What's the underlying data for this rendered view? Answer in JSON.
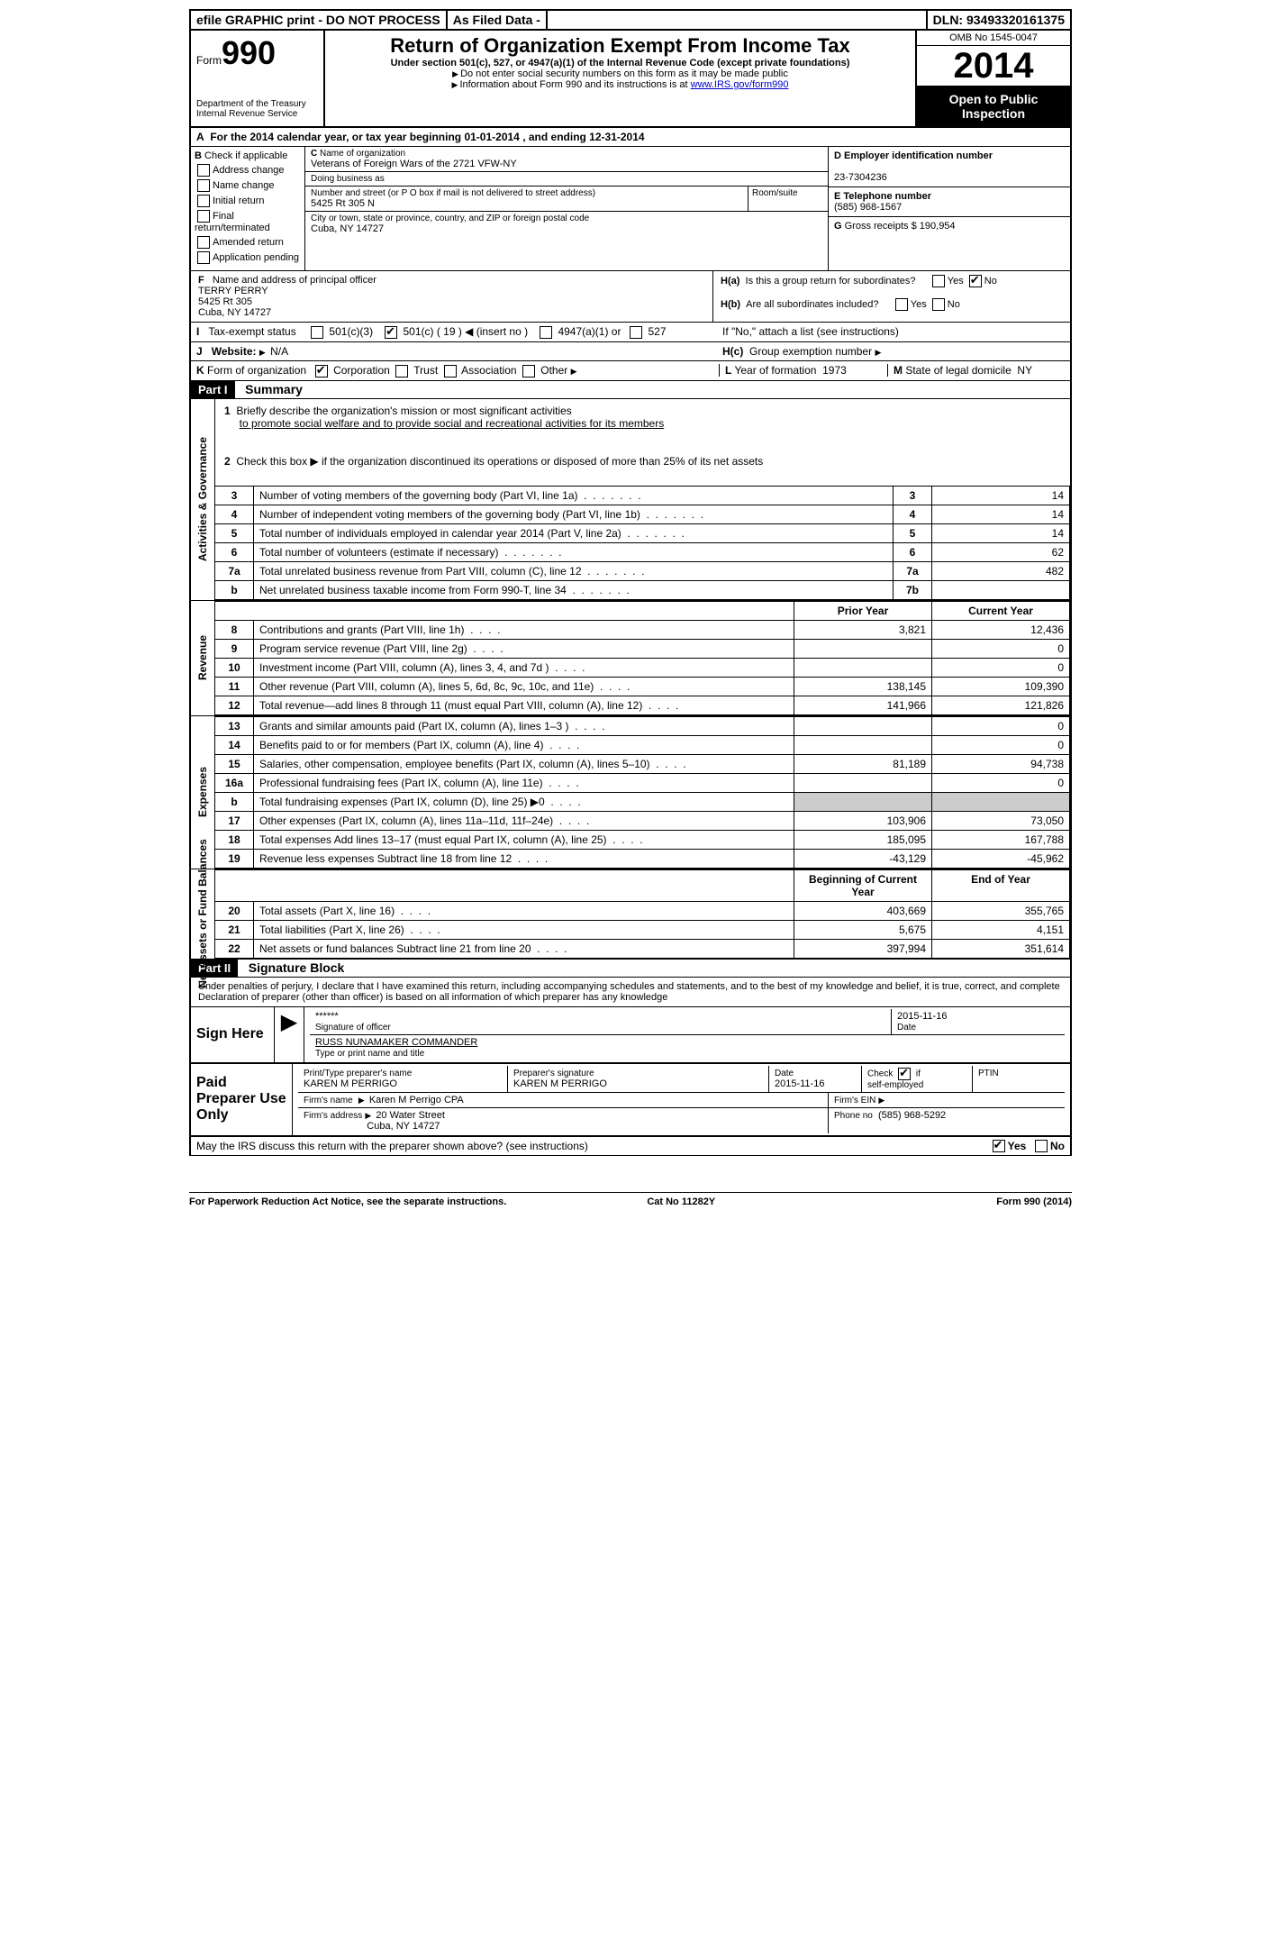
{
  "topbar": {
    "efile": "efile GRAPHIC print - DO NOT PROCESS",
    "asfiled": "As Filed Data -",
    "dln_label": "DLN:",
    "dln": "93493320161375"
  },
  "header": {
    "form_word": "Form",
    "form_no": "990",
    "dept": "Department of the Treasury",
    "irs": "Internal Revenue Service",
    "title": "Return of Organization Exempt From Income Tax",
    "subtitle": "Under section 501(c), 527, or 4947(a)(1) of the Internal Revenue Code (except private foundations)",
    "note1": "Do not enter social security numbers on this form as it may be made public",
    "note2": "Information about Form 990 and its instructions is at ",
    "note2_link": "www.IRS.gov/form990",
    "omb": "OMB No 1545-0047",
    "year": "2014",
    "open": "Open to Public Inspection"
  },
  "A": {
    "text_a": "For the 2014 calendar year, or tax year beginning 01-01-2014",
    "text_b": ", and ending 12-31-2014"
  },
  "B": {
    "label": "Check if applicable",
    "items": [
      "Address change",
      "Name change",
      "Initial return",
      "Final return/terminated",
      "Amended return",
      "Application pending"
    ]
  },
  "C": {
    "name_lab": "Name of organization",
    "name": "Veterans of Foreign Wars of the 2721 VFW-NY",
    "dba_lab": "Doing business as",
    "dba": "",
    "street_lab": "Number and street (or P O  box if mail is not delivered to street address)",
    "street": "5425 Rt 305 N",
    "room_lab": "Room/suite",
    "city_lab": "City or town, state or province, country, and ZIP or foreign postal code",
    "city": "Cuba, NY  14727"
  },
  "D": {
    "lab": "Employer identification number",
    "val": "23-7304236"
  },
  "E": {
    "lab": "Telephone number",
    "val": "(585) 968-1567"
  },
  "G": {
    "lab": "Gross receipts $",
    "val": "190,954"
  },
  "F": {
    "lab": "Name and address of principal officer",
    "name": "TERRY PERRY",
    "addr1": "5425 Rt 305",
    "addr2": "Cuba, NY  14727"
  },
  "H": {
    "a": "Is this a group return for subordinates?",
    "b": "Are all subordinates included?",
    "note": "If \"No,\" attach a list  (see instructions)",
    "c": "Group exemption number",
    "yes": "Yes",
    "no": "No"
  },
  "I": {
    "lab": "Tax-exempt status",
    "opts": [
      "501(c)(3)",
      "501(c) ( 19 ) ◀ (insert no )",
      "4947(a)(1) or",
      "527"
    ]
  },
  "J": {
    "lab": "Website:",
    "val": "N/A"
  },
  "K": {
    "lab": "Form of organization",
    "opts": [
      "Corporation",
      "Trust",
      "Association",
      "Other"
    ]
  },
  "L": {
    "lab": "Year of formation",
    "val": "1973"
  },
  "M": {
    "lab": "State of legal domicile",
    "val": "NY"
  },
  "part1": {
    "lab": "Part I",
    "title": "Summary"
  },
  "mission": {
    "q1": "Briefly describe the organization's mission or most significant activities",
    "ans": "to promote social welfare and to provide social and recreational activities for its members",
    "q2": "Check this box ▶  if the organization discontinued its operations or disposed of more than 25% of its net assets"
  },
  "gov_rows": [
    {
      "n": "3",
      "t": "Number of voting members of the governing body (Part VI, line 1a)",
      "k": "3",
      "v": "14"
    },
    {
      "n": "4",
      "t": "Number of independent voting members of the governing body (Part VI, line 1b)",
      "k": "4",
      "v": "14"
    },
    {
      "n": "5",
      "t": "Total number of individuals employed in calendar year 2014 (Part V, line 2a)",
      "k": "5",
      "v": "14"
    },
    {
      "n": "6",
      "t": "Total number of volunteers (estimate if necessary)",
      "k": "6",
      "v": "62"
    },
    {
      "n": "7a",
      "t": "Total unrelated business revenue from Part VIII, column (C), line 12",
      "k": "7a",
      "v": "482"
    },
    {
      "n": "b",
      "t": "Net unrelated business taxable income from Form 990-T, line 34",
      "k": "7b",
      "v": ""
    }
  ],
  "py_cy_header": {
    "py": "Prior Year",
    "cy": "Current Year"
  },
  "rev_rows": [
    {
      "n": "8",
      "t": "Contributions and grants (Part VIII, line 1h)",
      "py": "3,821",
      "cy": "12,436"
    },
    {
      "n": "9",
      "t": "Program service revenue (Part VIII, line 2g)",
      "py": "",
      "cy": "0"
    },
    {
      "n": "10",
      "t": "Investment income (Part VIII, column (A), lines 3, 4, and 7d )",
      "py": "",
      "cy": "0"
    },
    {
      "n": "11",
      "t": "Other revenue (Part VIII, column (A), lines 5, 6d, 8c, 9c, 10c, and 11e)",
      "py": "138,145",
      "cy": "109,390"
    },
    {
      "n": "12",
      "t": "Total revenue—add lines 8 through 11 (must equal Part VIII, column (A), line 12)",
      "py": "141,966",
      "cy": "121,826"
    }
  ],
  "exp_rows": [
    {
      "n": "13",
      "t": "Grants and similar amounts paid (Part IX, column (A), lines 1–3 )",
      "py": "",
      "cy": "0"
    },
    {
      "n": "14",
      "t": "Benefits paid to or for members (Part IX, column (A), line 4)",
      "py": "",
      "cy": "0"
    },
    {
      "n": "15",
      "t": "Salaries, other compensation, employee benefits (Part IX, column (A), lines 5–10)",
      "py": "81,189",
      "cy": "94,738"
    },
    {
      "n": "16a",
      "t": "Professional fundraising fees (Part IX, column (A), line 11e)",
      "py": "",
      "cy": "0"
    },
    {
      "n": "b",
      "t": "Total fundraising expenses (Part IX, column (D), line 25) ▶0",
      "py": "—shade—",
      "cy": "—shade—"
    },
    {
      "n": "17",
      "t": "Other expenses (Part IX, column (A), lines 11a–11d, 11f–24e)",
      "py": "103,906",
      "cy": "73,050"
    },
    {
      "n": "18",
      "t": "Total expenses  Add lines 13–17 (must equal Part IX, column (A), line 25)",
      "py": "185,095",
      "cy": "167,788"
    },
    {
      "n": "19",
      "t": "Revenue less expenses  Subtract line 18 from line 12",
      "py": "-43,129",
      "cy": "-45,962"
    }
  ],
  "na_header": {
    "py": "Beginning of Current Year",
    "cy": "End of Year"
  },
  "na_rows": [
    {
      "n": "20",
      "t": "Total assets (Part X, line 16)",
      "py": "403,669",
      "cy": "355,765"
    },
    {
      "n": "21",
      "t": "Total liabilities (Part X, line 26)",
      "py": "5,675",
      "cy": "4,151"
    },
    {
      "n": "22",
      "t": "Net assets or fund balances  Subtract line 21 from line 20",
      "py": "397,994",
      "cy": "351,614"
    }
  ],
  "part2": {
    "lab": "Part II",
    "title": "Signature Block"
  },
  "perjury": "Under penalties of perjury, I declare that I have examined this return, including accompanying schedules and statements, and to the best of my knowledge and belief, it is true, correct, and complete  Declaration of preparer (other than officer) is based on all information of which preparer has any knowledge",
  "sign": {
    "lab": "Sign Here",
    "stars": "******",
    "sig_of": "Signature of officer",
    "date": "2015-11-16",
    "date_lab": "Date",
    "typed": "RUSS NUNAMAKER COMMANDER",
    "typed_lab": "Type or print name and title"
  },
  "paid": {
    "lab": "Paid Preparer Use Only",
    "ptname_lab": "Print/Type preparer's name",
    "ptname": "KAREN M PERRIGO",
    "psig_lab": "Preparer's signature",
    "psig": "KAREN M PERRIGO",
    "pdate_lab": "Date",
    "pdate": "2015-11-16",
    "self_lab": "Check       if self-employed",
    "ptin_lab": "PTIN",
    "firm_lab": "Firm's name",
    "firm": "Karen M Perrigo CPA",
    "ein_lab": "Firm's EIN",
    "addr_lab": "Firm's address",
    "addr1": "20 Water Street",
    "addr2": "Cuba, NY  14727",
    "phone_lab": "Phone no",
    "phone": "(585) 968-5292",
    "discuss": "May the IRS discuss this return with the preparer shown above? (see instructions)"
  },
  "footer": {
    "left": "For Paperwork Reduction Act Notice, see the separate instructions.",
    "mid": "Cat No  11282Y",
    "right": "Form 990 (2014)"
  },
  "vtabs": {
    "gov": "Activities & Governance",
    "rev": "Revenue",
    "exp": "Expenses",
    "na": "Net Assets or Fund Balances"
  }
}
